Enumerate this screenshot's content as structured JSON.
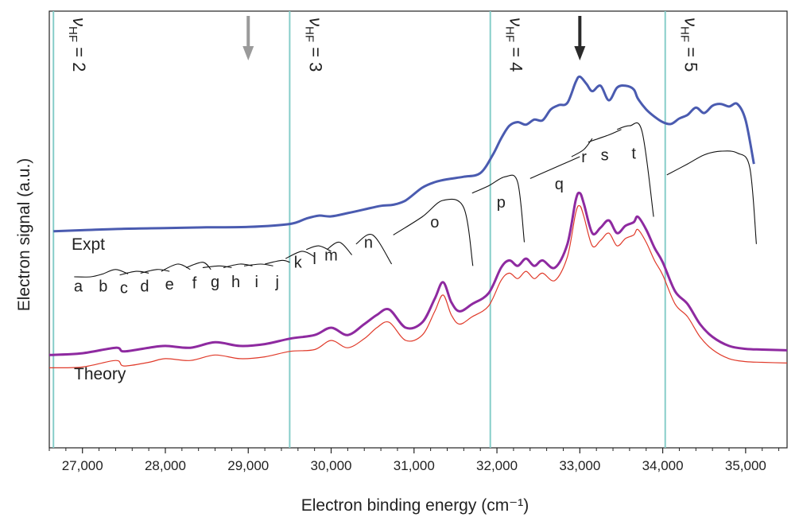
{
  "chart_data": {
    "type": "line",
    "xlabel": "Electron binding energy (cm⁻¹)",
    "ylabel": "Electron signal (a.u.)",
    "xlim": [
      26600,
      35500
    ],
    "xticks": [
      27000,
      28000,
      29000,
      30000,
      31000,
      32000,
      33000,
      34000,
      35000
    ],
    "xtick_labels": [
      "27,000",
      "28,000",
      "29,000",
      "30,000",
      "31,000",
      "32,000",
      "33,000",
      "34,000",
      "35,000"
    ],
    "grid": false,
    "colors": {
      "expt": "#4a5bb0",
      "theory": "#8e2aa0",
      "theory_thin": "#e03a2a",
      "segments": "#111111",
      "vlines": "#86cdc9",
      "arrow_grey": "#9a9a9a",
      "arrow_black": "#2a2a2a"
    },
    "series_labels": {
      "expt": "Expt",
      "theory": "Theory"
    },
    "vlines": [
      {
        "x": 26650,
        "main": "ν",
        "sub": "HF",
        "rest": " = 2"
      },
      {
        "x": 29500,
        "main": "ν",
        "sub": "HF",
        "rest": " = 3"
      },
      {
        "x": 31920,
        "main": "ν",
        "sub": "HF",
        "rest": " = 4"
      },
      {
        "x": 34030,
        "main": "ν",
        "sub": "HF",
        "rest": " = 5"
      }
    ],
    "arrows": [
      {
        "x": 29000,
        "color": "grey"
      },
      {
        "x": 33000,
        "color": "black"
      }
    ],
    "series": [
      {
        "key": "expt",
        "x": [
          26650,
          27000,
          27500,
          28000,
          28500,
          29000,
          29500,
          29700,
          29850,
          30000,
          30200,
          30400,
          30600,
          30750,
          30900,
          31100,
          31250,
          31400,
          31600,
          31800,
          31950,
          32050,
          32150,
          32250,
          32350,
          32450,
          32550,
          32650,
          32750,
          32850,
          32950,
          33000,
          33080,
          33150,
          33250,
          33350,
          33450,
          33550,
          33650,
          33700,
          33800,
          33900,
          34000,
          34100,
          34200,
          34300,
          34400,
          34500,
          34600,
          34700,
          34800,
          34900,
          35000,
          35100
        ],
        "y": [
          0.45,
          0.48,
          0.52,
          0.54,
          0.56,
          0.57,
          0.65,
          0.8,
          0.88,
          0.86,
          0.95,
          1.05,
          1.15,
          1.18,
          1.3,
          1.65,
          1.8,
          1.88,
          1.95,
          2.05,
          2.55,
          3.0,
          3.35,
          3.45,
          3.38,
          3.52,
          3.5,
          3.8,
          3.92,
          3.98,
          4.55,
          4.7,
          4.5,
          4.3,
          4.45,
          4.05,
          4.4,
          4.45,
          4.35,
          4.1,
          3.8,
          3.6,
          3.45,
          3.4,
          3.55,
          3.65,
          3.85,
          3.7,
          3.9,
          3.95,
          3.88,
          3.95,
          3.5,
          2.3
        ]
      },
      {
        "key": "theory",
        "x": [
          26600,
          27000,
          27400,
          27500,
          27800,
          28000,
          28300,
          28600,
          28900,
          29200,
          29500,
          29800,
          30000,
          30200,
          30400,
          30550,
          30700,
          30900,
          31100,
          31250,
          31350,
          31450,
          31550,
          31700,
          31900,
          32050,
          32150,
          32250,
          32350,
          32450,
          32550,
          32700,
          32850,
          32950,
          33000,
          33050,
          33150,
          33250,
          33350,
          33450,
          33550,
          33650,
          33700,
          33800,
          33900,
          34000,
          34150,
          34300,
          34450,
          34600,
          34800,
          35000,
          35200,
          35500
        ],
        "y": [
          -2.95,
          -2.9,
          -2.75,
          -2.85,
          -2.75,
          -2.7,
          -2.75,
          -2.6,
          -2.7,
          -2.65,
          -2.5,
          -2.4,
          -2.2,
          -2.4,
          -2.1,
          -1.85,
          -1.7,
          -2.2,
          -2.05,
          -1.4,
          -0.95,
          -1.5,
          -1.75,
          -1.55,
          -1.25,
          -0.55,
          -0.35,
          -0.5,
          -0.3,
          -0.5,
          -0.35,
          -0.55,
          0.1,
          1.3,
          1.5,
          1.2,
          0.4,
          0.55,
          0.75,
          0.4,
          0.6,
          0.7,
          0.85,
          0.5,
          0.0,
          -0.4,
          -1.2,
          -1.55,
          -2.1,
          -2.45,
          -2.7,
          -2.78,
          -2.8,
          -2.82
        ]
      },
      {
        "key": "theory_thin",
        "x": [
          26600,
          27000,
          27400,
          27500,
          27800,
          28000,
          28300,
          28600,
          28900,
          29200,
          29500,
          29800,
          30000,
          30200,
          30400,
          30550,
          30700,
          30900,
          31100,
          31250,
          31350,
          31450,
          31550,
          31700,
          31900,
          32050,
          32150,
          32250,
          32350,
          32450,
          32550,
          32700,
          32850,
          32950,
          33000,
          33050,
          33150,
          33250,
          33350,
          33450,
          33550,
          33650,
          33700,
          33800,
          33900,
          34000,
          34150,
          34300,
          34450,
          34600,
          34800,
          35000,
          35200,
          35500
        ],
        "y": [
          -3.3,
          -3.28,
          -3.1,
          -3.25,
          -3.15,
          -3.05,
          -3.1,
          -2.95,
          -3.05,
          -3.0,
          -2.85,
          -2.8,
          -2.55,
          -2.75,
          -2.5,
          -2.2,
          -2.05,
          -2.55,
          -2.4,
          -1.75,
          -1.3,
          -1.85,
          -2.1,
          -1.9,
          -1.6,
          -0.9,
          -0.7,
          -0.85,
          -0.65,
          -0.85,
          -0.7,
          -0.9,
          -0.25,
          0.95,
          1.15,
          0.85,
          0.05,
          0.2,
          0.4,
          0.05,
          0.25,
          0.35,
          0.5,
          0.15,
          -0.35,
          -0.75,
          -1.55,
          -1.9,
          -2.45,
          -2.8,
          -3.05,
          -3.13,
          -3.15,
          -3.17
        ]
      }
    ],
    "segments": [
      {
        "label": "a",
        "x": [
          26900,
          27100,
          27250
        ],
        "y": [
          -0.8,
          -0.8,
          -0.72
        ]
      },
      {
        "label": "b",
        "x": [
          27250,
          27400,
          27550
        ],
        "y": [
          -0.72,
          -0.6,
          -0.72
        ]
      },
      {
        "label": "c",
        "x": [
          27450,
          27650,
          27800
        ],
        "y": [
          -0.75,
          -0.65,
          -0.7
        ]
      },
      {
        "label": "d",
        "x": [
          27700,
          27900,
          28050
        ],
        "y": [
          -0.7,
          -0.6,
          -0.65
        ]
      },
      {
        "label": "e",
        "x": [
          27950,
          28150,
          28300
        ],
        "y": [
          -0.65,
          -0.45,
          -0.6
        ]
      },
      {
        "label": "f",
        "x": [
          28250,
          28450,
          28550
        ],
        "y": [
          -0.55,
          -0.4,
          -0.6
        ]
      },
      {
        "label": "g",
        "x": [
          28450,
          28650,
          28800
        ],
        "y": [
          -0.55,
          -0.5,
          -0.55
        ]
      },
      {
        "label": "h",
        "x": [
          28700,
          28900,
          29050
        ],
        "y": [
          -0.55,
          -0.45,
          -0.5
        ]
      },
      {
        "label": "i",
        "x": [
          28950,
          29150,
          29300
        ],
        "y": [
          -0.5,
          -0.45,
          -0.5
        ]
      },
      {
        "label": "j",
        "x": [
          29200,
          29400,
          29500
        ],
        "y": [
          -0.45,
          -0.35,
          -0.4
        ]
      },
      {
        "label": "k",
        "x": [
          29450,
          29650,
          29800
        ],
        "y": [
          -0.3,
          -0.1,
          -0.25
        ]
      },
      {
        "label": "l",
        "x": [
          29700,
          29850,
          30000
        ],
        "y": [
          -0.05,
          0.05,
          -0.1
        ]
      },
      {
        "label": "m",
        "x": [
          29950,
          30100,
          30250
        ],
        "y": [
          -0.05,
          0.15,
          -0.2
        ]
      },
      {
        "label": "n",
        "x": [
          30300,
          30500,
          30730
        ],
        "y": [
          0.1,
          0.35,
          -0.45
        ]
      },
      {
        "label": "o",
        "x": [
          30750,
          31100,
          31350,
          31600,
          31710
        ],
        "y": [
          0.35,
          0.85,
          1.3,
          1.1,
          -0.5
        ]
      },
      {
        "label": "p",
        "x": [
          31700,
          31900,
          32100,
          32250,
          32330
        ],
        "y": [
          1.5,
          1.7,
          1.95,
          1.8,
          0.15
        ]
      },
      {
        "label": "q",
        "x": [
          32400,
          32600,
          32800,
          33000
        ],
        "y": [
          1.9,
          2.1,
          2.3,
          2.5
        ]
      },
      {
        "label": "r",
        "x": [
          32900,
          33050,
          33150
        ],
        "y": [
          2.5,
          2.7,
          3.0
        ]
      },
      {
        "label": "s",
        "x": [
          33100,
          33350,
          33500
        ],
        "y": [
          2.9,
          3.1,
          3.25
        ]
      },
      {
        "label": "t",
        "x": [
          33450,
          33600,
          33750,
          33890
        ],
        "y": [
          3.25,
          3.35,
          3.2,
          0.85
        ]
      },
      {
        "label": "",
        "x": [
          34050,
          34300,
          34500,
          34700,
          34900,
          35050,
          35130
        ],
        "y": [
          2.0,
          2.3,
          2.55,
          2.65,
          2.6,
          2.2,
          0.1
        ]
      }
    ],
    "segment_labels": [
      {
        "text": "a",
        "x": 26950,
        "y": -1.2
      },
      {
        "text": "b",
        "x": 27250,
        "y": -1.2
      },
      {
        "text": "c",
        "x": 27500,
        "y": -1.25
      },
      {
        "text": "d",
        "x": 27750,
        "y": -1.2
      },
      {
        "text": "e",
        "x": 28050,
        "y": -1.15
      },
      {
        "text": "f",
        "x": 28350,
        "y": -1.12
      },
      {
        "text": "g",
        "x": 28600,
        "y": -1.08
      },
      {
        "text": "h",
        "x": 28850,
        "y": -1.08
      },
      {
        "text": "i",
        "x": 29100,
        "y": -1.08
      },
      {
        "text": "j",
        "x": 29350,
        "y": -1.08
      },
      {
        "text": "k",
        "x": 29600,
        "y": -0.55
      },
      {
        "text": "l",
        "x": 29800,
        "y": -0.45
      },
      {
        "text": "m",
        "x": 30000,
        "y": -0.35
      },
      {
        "text": "n",
        "x": 30450,
        "y": 0.0
      },
      {
        "text": "o",
        "x": 31250,
        "y": 0.55
      },
      {
        "text": "p",
        "x": 32050,
        "y": 1.1
      },
      {
        "text": "q",
        "x": 32750,
        "y": 1.6
      },
      {
        "text": "r",
        "x": 33050,
        "y": 2.35
      },
      {
        "text": "s",
        "x": 33300,
        "y": 2.4
      },
      {
        "text": "t",
        "x": 33650,
        "y": 2.45
      }
    ],
    "ylim": [
      -5.5,
      6.5
    ]
  }
}
